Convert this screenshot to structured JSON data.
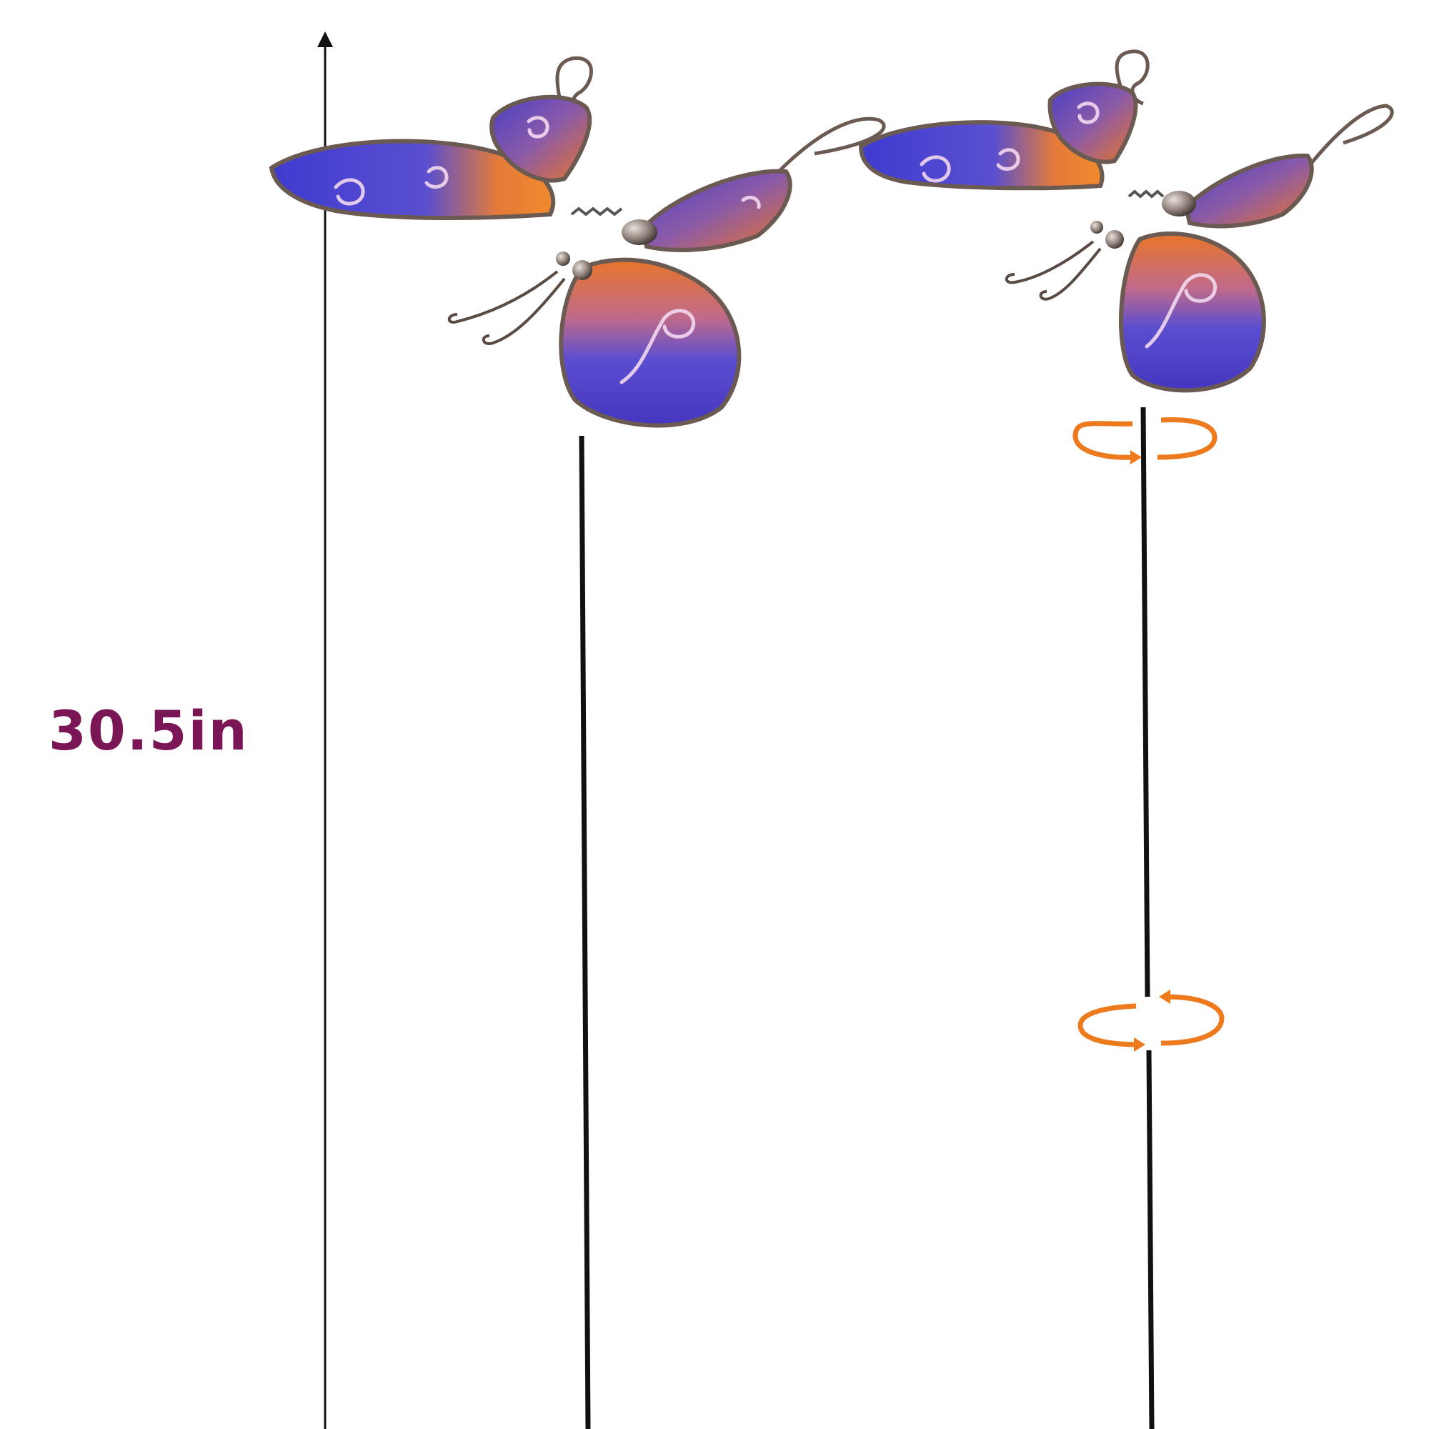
{
  "dimension": {
    "label": "30.5in",
    "label_color": "#7a1656",
    "line_color": "#111111"
  },
  "colors": {
    "wing_blue": "#4a3fc4",
    "wing_orange": "#e8752a",
    "frame_metal": "#6b5a52",
    "rotation_arrow": "#ee7a1e",
    "stake": "#111111"
  },
  "products": [
    {
      "name": "butterfly-stake-assembled"
    },
    {
      "name": "butterfly-stake-exploded"
    }
  ]
}
